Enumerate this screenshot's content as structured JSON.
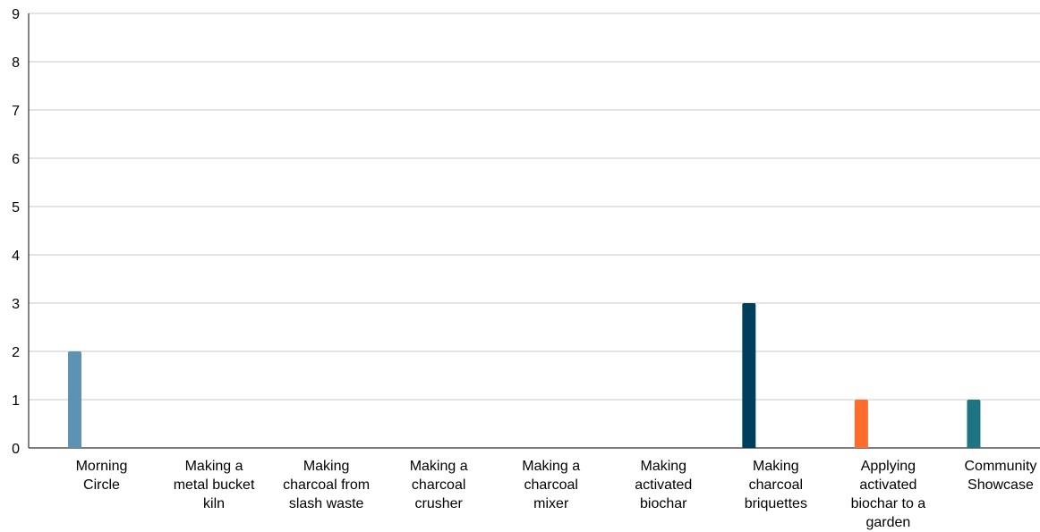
{
  "chart_data": {
    "type": "bar",
    "title": "",
    "xlabel": "",
    "ylabel": "",
    "ylim": [
      0,
      9
    ],
    "yticks": [
      "0",
      "1",
      "2",
      "3",
      "4",
      "5",
      "6",
      "7",
      "8",
      "9"
    ],
    "grid": true,
    "legend": "none",
    "categories": [
      {
        "lines": [
          "Morning",
          "Circle"
        ]
      },
      {
        "lines": [
          "Making a",
          "metal bucket",
          "kiln"
        ]
      },
      {
        "lines": [
          "Making",
          "charcoal from",
          "slash waste"
        ]
      },
      {
        "lines": [
          "Making a",
          "charcoal",
          "crusher"
        ]
      },
      {
        "lines": [
          "Making a",
          "charcoal",
          "mixer"
        ]
      },
      {
        "lines": [
          "Making",
          "activated",
          "biochar"
        ]
      },
      {
        "lines": [
          "Making",
          "charcoal",
          "briquettes"
        ]
      },
      {
        "lines": [
          "Applying",
          "activated",
          "biochar to a",
          "garden"
        ]
      },
      {
        "lines": [
          "Community",
          "Showcase"
        ]
      }
    ],
    "values": [
      2,
      0,
      0,
      0,
      0,
      0,
      3,
      1,
      1
    ],
    "colors": [
      "#5b93b0",
      "#5b93b0",
      "#5b93b0",
      "#5b93b0",
      "#5b93b0",
      "#5b93b0",
      "#003f5c",
      "#ff6b2c",
      "#1d7482"
    ]
  }
}
